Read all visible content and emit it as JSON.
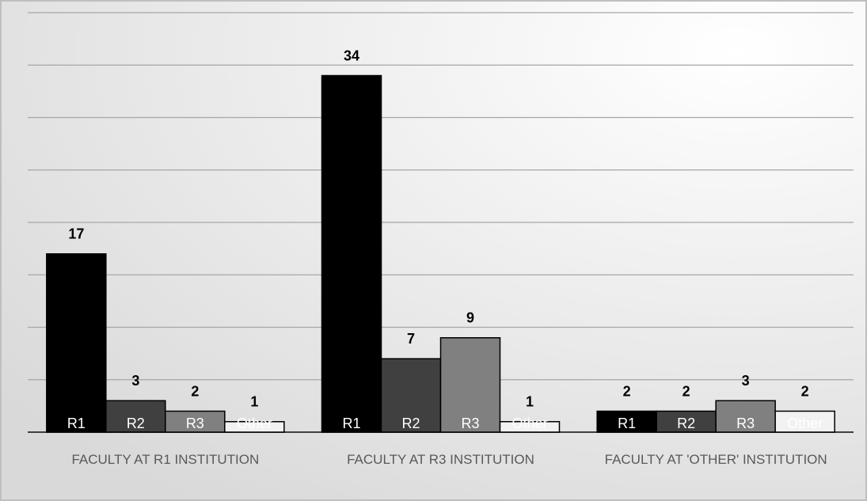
{
  "chart_data": {
    "type": "bar",
    "categories": [
      "FACULTY AT R1 INSTITUTION",
      "FACULTY AT R3 INSTITUTION",
      "FACULTY AT 'OTHER' INSTITUTION"
    ],
    "series": [
      {
        "name": "R1",
        "color": "#000000",
        "values": [
          17,
          34,
          2
        ]
      },
      {
        "name": "R2",
        "color": "#404040",
        "values": [
          3,
          7,
          2
        ]
      },
      {
        "name": "R3",
        "color": "#808080",
        "values": [
          2,
          9,
          3
        ]
      },
      {
        "name": "Other",
        "color": "#f2f2f2",
        "values": [
          1,
          1,
          2
        ]
      }
    ],
    "ylim": [
      0,
      40
    ],
    "yticks": [
      0,
      5,
      10,
      15,
      20,
      25,
      30,
      35,
      40
    ],
    "grid": true
  }
}
